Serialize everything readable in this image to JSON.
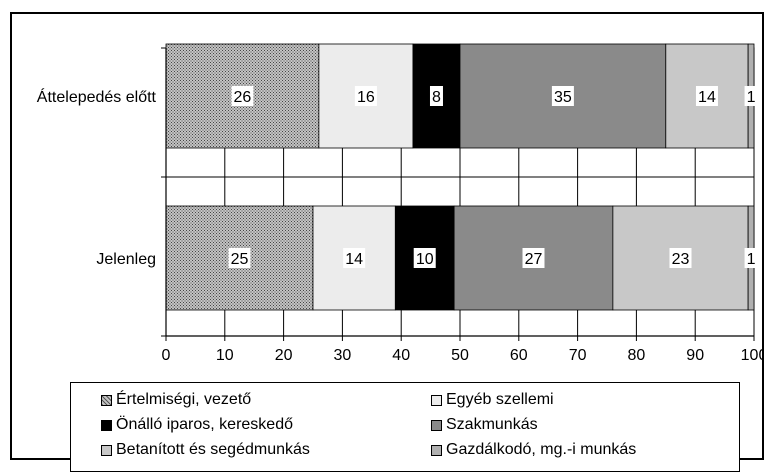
{
  "chart_data": {
    "type": "bar",
    "orientation": "horizontal",
    "stacked": true,
    "categories": [
      "Áttelepedés előtt",
      "Jelenleg"
    ],
    "series": [
      {
        "name": "Értelmiségi, vezető",
        "values": [
          26,
          25
        ],
        "color": "#9a9a9a",
        "pattern": "dots"
      },
      {
        "name": "Egyéb szellemi",
        "values": [
          16,
          14
        ],
        "color": "#ececec"
      },
      {
        "name": "Önálló iparos, kereskedő",
        "values": [
          8,
          10
        ],
        "color": "#000000"
      },
      {
        "name": "Szakmunkás",
        "values": [
          35,
          27
        ],
        "color": "#8a8a8a"
      },
      {
        "name": "Betanított és segédmunkás",
        "values": [
          14,
          23
        ],
        "color": "#c8c8c8"
      },
      {
        "name": "Gazdálkodó, mg.-i munkás",
        "values": [
          1,
          1
        ],
        "color": "#b0b0b0"
      }
    ],
    "xlim": [
      0,
      100
    ],
    "xticks": [
      "0",
      "10",
      "20",
      "30",
      "40",
      "50",
      "60",
      "70",
      "80",
      "90",
      "100"
    ],
    "grid": true,
    "legend_position": "bottom"
  }
}
